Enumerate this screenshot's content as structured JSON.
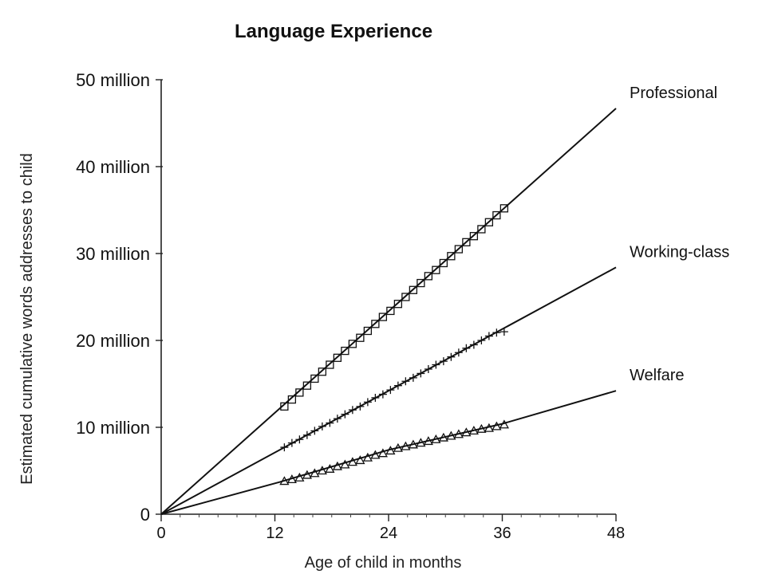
{
  "chart_data": {
    "type": "line",
    "title": "Language Experience",
    "xlabel": "Age of child in months",
    "ylabel": "Estimated cumulative words addresses to child",
    "xlim": [
      0,
      48
    ],
    "ylim": [
      0,
      50000000
    ],
    "x_ticks": [
      {
        "value": 0,
        "label": "0"
      },
      {
        "value": 12,
        "label": "12"
      },
      {
        "value": 24,
        "label": "24"
      },
      {
        "value": 36,
        "label": "36"
      },
      {
        "value": 48,
        "label": "48"
      }
    ],
    "y_ticks": [
      {
        "value": 0,
        "label": "0"
      },
      {
        "value": 10000000,
        "label": "10 million"
      },
      {
        "value": 20000000,
        "label": "20 million"
      },
      {
        "value": 30000000,
        "label": "30 million"
      },
      {
        "value": 40000000,
        "label": "40 million"
      },
      {
        "value": 50000000,
        "label": "50 million"
      }
    ],
    "grid": false,
    "series": [
      {
        "name": "Professional",
        "marker": "square",
        "trend_line": [
          [
            0,
            0
          ],
          [
            48,
            46700000
          ]
        ],
        "x": [
          13,
          13.8,
          14.6,
          15.4,
          16.2,
          17,
          17.8,
          18.6,
          19.4,
          20.2,
          21,
          21.8,
          22.6,
          23.4,
          24.2,
          25,
          25.8,
          26.6,
          27.4,
          28.2,
          29,
          29.8,
          30.6,
          31.4,
          32.2,
          33,
          33.8,
          34.6,
          35.4,
          36.2
        ],
        "y": [
          12400000,
          13200000,
          14000000,
          14800000,
          15600000,
          16400000,
          17200000,
          18000000,
          18800000,
          19600000,
          20300000,
          21100000,
          21900000,
          22700000,
          23400000,
          24200000,
          25000000,
          25800000,
          26600000,
          27400000,
          28100000,
          28900000,
          29700000,
          30500000,
          31300000,
          32000000,
          32800000,
          33600000,
          34400000,
          35200000
        ]
      },
      {
        "name": "Working-class",
        "marker": "plus",
        "trend_line": [
          [
            0,
            0
          ],
          [
            48,
            28400000
          ]
        ],
        "x": [
          13,
          13.8,
          14.6,
          15.4,
          16.2,
          17,
          17.8,
          18.6,
          19.4,
          20.2,
          21,
          21.8,
          22.6,
          23.4,
          24.2,
          25,
          25.8,
          26.6,
          27.4,
          28.2,
          29,
          29.8,
          30.6,
          31.4,
          32.2,
          33,
          33.8,
          34.6,
          35.4,
          36.2
        ],
        "y": [
          7700000,
          8200000,
          8600000,
          9100000,
          9600000,
          10100000,
          10500000,
          11000000,
          11500000,
          12000000,
          12400000,
          12900000,
          13400000,
          13800000,
          14300000,
          14800000,
          15300000,
          15700000,
          16200000,
          16700000,
          17200000,
          17600000,
          18100000,
          18600000,
          19100000,
          19500000,
          20000000,
          20500000,
          20900000,
          21000000
        ]
      },
      {
        "name": "Welfare",
        "marker": "triangle",
        "trend_line": [
          [
            0,
            0
          ],
          [
            12.5,
            3700000
          ],
          [
            24,
            7400000
          ],
          [
            36,
            10400000
          ],
          [
            48,
            14200000
          ]
        ],
        "x": [
          13,
          13.8,
          14.6,
          15.4,
          16.2,
          17,
          17.8,
          18.6,
          19.4,
          20.2,
          21,
          21.8,
          22.6,
          23.4,
          24.2,
          25,
          25.8,
          26.6,
          27.4,
          28.2,
          29,
          29.8,
          30.6,
          31.4,
          32.2,
          33,
          33.8,
          34.6,
          35.4,
          36.2
        ],
        "y": [
          3800000,
          4000000,
          4200000,
          4500000,
          4700000,
          5000000,
          5200000,
          5500000,
          5700000,
          6000000,
          6200000,
          6500000,
          6800000,
          7000000,
          7300000,
          7600000,
          7800000,
          8000000,
          8200000,
          8400000,
          8600000,
          8800000,
          9000000,
          9200000,
          9400000,
          9600000,
          9800000,
          9900000,
          10100000,
          10300000
        ]
      }
    ]
  }
}
